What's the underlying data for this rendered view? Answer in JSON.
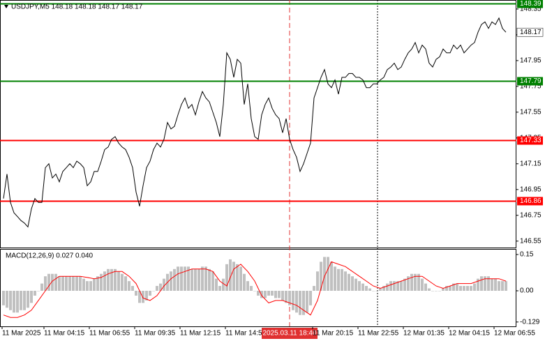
{
  "chart_data": {
    "type": "line",
    "title": "USDJPY,M5  148.18 148.18 148.17 148.17",
    "color": "#000000",
    "values": [
      146.88,
      147.07,
      146.85,
      146.77,
      146.74,
      146.71,
      146.69,
      146.66,
      146.8,
      146.88,
      146.85,
      146.85,
      147.12,
      147.15,
      147.04,
      147.07,
      147.01,
      147.09,
      147.12,
      147.15,
      147.12,
      147.17,
      147.15,
      147.12,
      146.98,
      147.01,
      147.09,
      147.09,
      147.17,
      147.26,
      147.28,
      147.34,
      147.36,
      147.31,
      147.28,
      147.26,
      147.2,
      147.12,
      146.93,
      146.82,
      146.98,
      147.12,
      147.17,
      147.26,
      147.31,
      147.28,
      147.34,
      147.47,
      147.42,
      147.44,
      147.53,
      147.61,
      147.66,
      147.58,
      147.61,
      147.53,
      147.63,
      147.71,
      147.66,
      147.63,
      147.55,
      147.47,
      147.36,
      147.61,
      148.01,
      147.96,
      147.82,
      147.96,
      147.93,
      147.61,
      147.77,
      147.5,
      147.36,
      147.34,
      147.53,
      147.61,
      147.66,
      147.58,
      147.53,
      147.5,
      147.39,
      147.5,
      147.34,
      147.26,
      147.2,
      147.09,
      147.15,
      147.23,
      147.31,
      147.66,
      147.74,
      147.82,
      147.88,
      147.77,
      147.74,
      147.8,
      147.69,
      147.82,
      147.82,
      147.85,
      147.85,
      147.82,
      147.82,
      147.8,
      147.74,
      147.74,
      147.77,
      147.77,
      147.8,
      147.82,
      147.88,
      147.9,
      147.93,
      147.88,
      147.9,
      147.96,
      148.01,
      148.04,
      148.09,
      148.01,
      148.07,
      148.04,
      147.93,
      147.9,
      147.96,
      147.98,
      148.04,
      148.01,
      148.01,
      148.07,
      148.04,
      148.07,
      148.01,
      148.04,
      148.07,
      148.09,
      148.17,
      148.23,
      148.25,
      148.2,
      148.25,
      148.23,
      148.28,
      148.2,
      148.17
    ],
    "categories": [
      "11 Mar 2025",
      null,
      null,
      null,
      null,
      null,
      null,
      null,
      null,
      null,
      null,
      null,
      "11 Mar 04:15",
      null,
      null,
      null,
      null,
      null,
      null,
      null,
      null,
      null,
      null,
      null,
      null,
      "11 Mar 06:55",
      null,
      null,
      null,
      null,
      null,
      null,
      null,
      null,
      null,
      null,
      null,
      null,
      "11 Mar 09:35",
      null,
      null,
      null,
      null,
      null,
      null,
      null,
      null,
      null,
      null,
      null,
      null,
      "11 Mar 12:15",
      null,
      null,
      null,
      null,
      null,
      null,
      null,
      null,
      null,
      null,
      null,
      null,
      "11 Mar 14:55",
      null,
      null,
      null,
      null,
      null,
      null,
      null,
      null,
      null,
      null,
      null,
      null,
      null,
      null,
      null,
      null,
      null,
      "2025.03.11 18:40",
      null,
      null,
      null,
      null,
      null,
      null,
      "11 Mar 20:15",
      null,
      null,
      null,
      null,
      null,
      null,
      null,
      null,
      null,
      null,
      null,
      null,
      "11 Mar 22:55",
      null,
      null,
      null,
      null,
      null,
      null,
      null,
      null,
      null,
      null,
      null,
      null,
      "12 Mar 01:35",
      null,
      null,
      null,
      null,
      null,
      null,
      null,
      null,
      null,
      null,
      null,
      null,
      "12 Mar 04:15",
      null,
      null,
      null,
      null,
      null,
      null,
      null,
      null,
      null,
      null,
      null,
      null,
      "12 Mar 06:55",
      null,
      null,
      null
    ],
    "cursor_index": 82,
    "ylim": [
      146.5,
      148.42
    ],
    "yticks": [
      146.55,
      146.75,
      146.95,
      147.15,
      147.35,
      147.55,
      147.75,
      147.95,
      148.15,
      148.35
    ],
    "levels": [
      {
        "value": 148.39,
        "color": "#008000"
      },
      {
        "value": 147.79,
        "color": "#008000"
      },
      {
        "value": 147.33,
        "color": "#ff0000"
      },
      {
        "value": 146.86,
        "color": "#ff0000"
      }
    ],
    "current": 148.17,
    "macd": {
      "label": "MACD(12,26,9) 0.027 0.040",
      "hist_color": "#c0c0c0",
      "signal_color": "#ff0000",
      "histogram": [
        -0.06,
        -0.07,
        -0.08,
        -0.09,
        -0.09,
        -0.08,
        -0.08,
        -0.07,
        -0.05,
        -0.02,
        0.0,
        0.03,
        0.06,
        0.07,
        0.07,
        0.07,
        0.06,
        0.06,
        0.06,
        0.06,
        0.06,
        0.06,
        0.06,
        0.05,
        0.04,
        0.04,
        0.05,
        0.06,
        0.07,
        0.08,
        0.09,
        0.09,
        0.09,
        0.08,
        0.07,
        0.06,
        0.04,
        0.02,
        -0.02,
        -0.05,
        -0.05,
        -0.04,
        -0.02,
        0.0,
        0.02,
        0.03,
        0.05,
        0.07,
        0.08,
        0.09,
        0.1,
        0.1,
        0.1,
        0.1,
        0.09,
        0.09,
        0.09,
        0.1,
        0.1,
        0.09,
        0.08,
        0.05,
        0.02,
        0.05,
        0.11,
        0.13,
        0.12,
        0.11,
        0.1,
        0.07,
        0.04,
        0.02,
        0.0,
        -0.02,
        -0.03,
        -0.03,
        -0.02,
        -0.02,
        -0.03,
        -0.03,
        -0.04,
        -0.05,
        -0.06,
        -0.08,
        -0.09,
        -0.1,
        -0.1,
        -0.09,
        -0.06,
        0.02,
        0.08,
        0.12,
        0.14,
        0.14,
        0.12,
        0.1,
        0.09,
        0.09,
        0.08,
        0.07,
        0.06,
        0.05,
        0.04,
        0.03,
        0.02,
        0.01,
        0.0,
        0.0,
        0.01,
        0.02,
        0.03,
        0.04,
        0.04,
        0.04,
        0.04,
        0.05,
        0.06,
        0.07,
        0.07,
        0.07,
        0.05,
        0.03,
        0.01,
        0.0,
        0.0,
        0.0,
        0.01,
        0.02,
        0.02,
        0.03,
        0.03,
        0.02,
        0.02,
        0.02,
        0.02,
        0.03,
        0.05,
        0.06,
        0.06,
        0.06,
        0.05,
        0.05,
        0.04,
        0.04,
        0.04
      ],
      "signal": [
        -0.1,
        -0.11,
        -0.11,
        -0.1,
        -0.08,
        -0.04,
        0.0,
        0.04,
        0.06,
        0.06,
        0.06,
        0.06,
        0.055,
        0.05,
        0.055,
        0.07,
        0.08,
        0.08,
        0.06,
        0.03,
        -0.03,
        -0.04,
        -0.02,
        0.02,
        0.05,
        0.07,
        0.08,
        0.09,
        0.09,
        0.09,
        0.08,
        0.04,
        0.02,
        0.09,
        0.11,
        0.08,
        0.04,
        -0.02,
        -0.05,
        -0.04,
        -0.04,
        -0.05,
        -0.06,
        -0.08,
        -0.1,
        -0.04,
        0.06,
        0.12,
        0.11,
        0.1,
        0.08,
        0.06,
        0.04,
        0.02,
        0.01,
        0.02,
        0.03,
        0.04,
        0.05,
        0.06,
        0.06,
        0.04,
        0.02,
        0.01,
        0.02,
        0.03,
        0.03,
        0.03,
        0.04,
        0.05,
        0.05,
        0.05,
        0.04
      ],
      "ylim": [
        -0.147,
        0.173
      ],
      "yticks": [
        0.15,
        {
          "value": 0,
          "label": "0.00"
        },
        -0.129
      ]
    }
  }
}
